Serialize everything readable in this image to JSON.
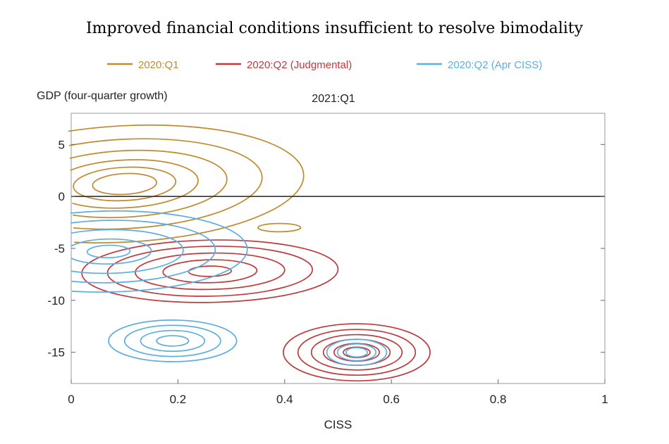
{
  "chart_data": {
    "type": "contour",
    "title": "Improved financial conditions insufficient to resolve bimodality",
    "subtitle": "2021:Q1",
    "xlabel": "CISS",
    "ylabel": "GDP (four-quarter growth)",
    "xlim": [
      0,
      1
    ],
    "ylim": [
      -18,
      8
    ],
    "xticks": [
      "0",
      "0.2",
      "0.4",
      "0.6",
      "0.8",
      "1"
    ],
    "yticks": [
      "5",
      "0",
      "-5",
      "-10",
      "-15"
    ],
    "xtick_values": [
      0,
      0.2,
      0.4,
      0.6,
      0.8,
      1
    ],
    "ytick_values": [
      5,
      0,
      -5,
      -10,
      -15
    ],
    "reference_line_y": 0,
    "grid": false,
    "legend_position": "top",
    "series": [
      {
        "name": "2020:Q1",
        "color": "#c08a2e",
        "modes": [
          {
            "x": 0.1,
            "y": 1.2,
            "rx": 0.06,
            "ry": 1.0,
            "levels": [
              1.0,
              1.6,
              2.3,
              3.2,
              4.3,
              5.6
            ],
            "tilt": -3
          },
          {
            "x": 0.39,
            "y": -3.0,
            "rx": 0.04,
            "ry": 0.4,
            "levels": [
              1.0
            ],
            "tilt": 0
          }
        ]
      },
      {
        "name": "2020:Q2 (Judgmental)",
        "color": "#c0393b",
        "modes": [
          {
            "x": 0.26,
            "y": -7.2,
            "rx": 0.04,
            "ry": 0.5,
            "levels": [
              1.0,
              2.2,
              3.5,
              4.8,
              6.0
            ],
            "tilt": -1
          },
          {
            "x": 0.535,
            "y": -15.0,
            "rx": 0.025,
            "ry": 0.5,
            "levels": [
              1.0,
              1.7,
              2.5,
              3.4,
              4.4,
              5.5
            ],
            "tilt": 0
          }
        ]
      },
      {
        "name": "2020:Q2 (Apr CISS)",
        "color": "#5aaee4",
        "modes": [
          {
            "x": 0.07,
            "y": -5.3,
            "rx": 0.04,
            "ry": 0.6,
            "levels": [
              1.0,
              2.0,
              3.5,
              5.0,
              6.5
            ],
            "tilt": -1
          },
          {
            "x": 0.19,
            "y": -13.9,
            "rx": 0.03,
            "ry": 0.5,
            "levels": [
              1.0,
              2.0,
              3.0,
              4.0
            ],
            "tilt": 0
          },
          {
            "x": 0.535,
            "y": -15.0,
            "rx": 0.02,
            "ry": 0.45,
            "levels": [
              1.0,
              1.8,
              2.8
            ],
            "tilt": 0
          }
        ]
      }
    ]
  }
}
